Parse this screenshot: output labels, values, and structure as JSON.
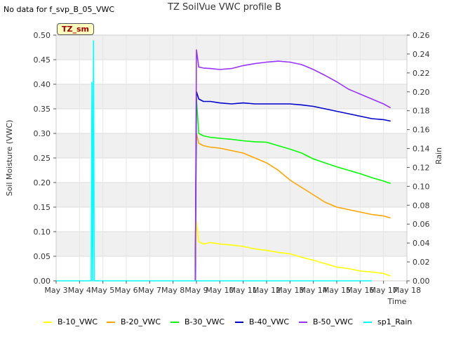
{
  "header": {
    "no_data_text": "No data for f_svp_B_05_VWC",
    "badge_label": "TZ_sm"
  },
  "chart_data": {
    "type": "line",
    "title": "TZ SoilVue VWC profile B",
    "xlabel": "Time",
    "ylabel": "Soil Moisture (VWC)",
    "y2label": "Rain",
    "xlim": [
      0,
      15
    ],
    "ylim": [
      0,
      0.5
    ],
    "y2lim": [
      0,
      0.26
    ],
    "x_ticks": [
      0,
      1,
      2,
      3,
      4,
      5,
      6,
      7,
      8,
      9,
      10,
      11,
      12,
      13,
      14,
      15
    ],
    "x_tick_labels": [
      "May 3",
      "May 4",
      "May 5",
      "May 6",
      "May 7",
      "May 8",
      "May 9",
      "May 10",
      "May 11",
      "May 12",
      "May 13",
      "May 14",
      "May 15",
      "May 16",
      "May 17",
      "May 18"
    ],
    "y_ticks": [
      0,
      0.05,
      0.1,
      0.15,
      0.2,
      0.25,
      0.3,
      0.35,
      0.4,
      0.45,
      0.5
    ],
    "y_tick_labels": [
      "0.00",
      "0.05",
      "0.10",
      "0.15",
      "0.20",
      "0.25",
      "0.30",
      "0.35",
      "0.40",
      "0.45",
      "0.50"
    ],
    "y2_ticks": [
      0,
      0.02,
      0.04,
      0.06,
      0.08,
      0.1,
      0.12,
      0.14,
      0.16,
      0.18,
      0.2,
      0.22,
      0.24,
      0.26
    ],
    "y2_tick_labels": [
      "0.00",
      "0.02",
      "0.04",
      "0.06",
      "0.08",
      "0.10",
      "0.12",
      "0.14",
      "0.16",
      "0.18",
      "0.20",
      "0.22",
      "0.24",
      "0.26"
    ],
    "legend_position": "bottom",
    "series": [
      {
        "name": "B-10_VWC",
        "color": "#ffff00",
        "axis": "left",
        "x": [
          5.95,
          6.0,
          6.1,
          6.3,
          6.6,
          7.0,
          7.5,
          8.0,
          8.5,
          9.0,
          9.5,
          10.0,
          10.5,
          11.0,
          11.5,
          12.0,
          12.5,
          13.0,
          13.5,
          14.0,
          14.3
        ],
        "y": [
          0.0,
          0.12,
          0.08,
          0.075,
          0.078,
          0.075,
          0.073,
          0.07,
          0.065,
          0.062,
          0.058,
          0.055,
          0.048,
          0.042,
          0.035,
          0.028,
          0.025,
          0.02,
          0.018,
          0.015,
          0.01
        ]
      },
      {
        "name": "B-20_VWC",
        "color": "#ffa500",
        "axis": "left",
        "x": [
          5.95,
          6.0,
          6.1,
          6.3,
          6.6,
          7.0,
          7.5,
          8.0,
          8.5,
          9.0,
          9.5,
          10.0,
          10.5,
          11.0,
          11.5,
          12.0,
          12.5,
          13.0,
          13.5,
          14.0,
          14.3
        ],
        "y": [
          0.0,
          0.3,
          0.28,
          0.275,
          0.272,
          0.27,
          0.265,
          0.26,
          0.25,
          0.24,
          0.225,
          0.205,
          0.19,
          0.175,
          0.16,
          0.15,
          0.145,
          0.14,
          0.135,
          0.132,
          0.128
        ]
      },
      {
        "name": "B-30_VWC",
        "color": "#00ff00",
        "axis": "left",
        "x": [
          5.95,
          6.0,
          6.1,
          6.3,
          6.6,
          7.0,
          7.5,
          8.0,
          8.5,
          9.0,
          9.5,
          10.0,
          10.5,
          11.0,
          11.5,
          12.0,
          12.5,
          13.0,
          13.5,
          14.0,
          14.3
        ],
        "y": [
          0.0,
          0.37,
          0.3,
          0.295,
          0.292,
          0.29,
          0.288,
          0.285,
          0.283,
          0.282,
          0.275,
          0.268,
          0.26,
          0.248,
          0.24,
          0.232,
          0.225,
          0.218,
          0.21,
          0.203,
          0.198
        ]
      },
      {
        "name": "B-40_VWC",
        "color": "#0000cc",
        "axis": "left",
        "x": [
          5.95,
          6.0,
          6.1,
          6.3,
          6.6,
          7.0,
          7.5,
          8.0,
          8.5,
          9.0,
          9.5,
          10.0,
          10.5,
          11.0,
          11.5,
          12.0,
          12.5,
          13.0,
          13.5,
          14.0,
          14.3
        ],
        "y": [
          0.0,
          0.385,
          0.37,
          0.365,
          0.365,
          0.362,
          0.36,
          0.362,
          0.36,
          0.36,
          0.36,
          0.36,
          0.358,
          0.355,
          0.35,
          0.345,
          0.34,
          0.335,
          0.33,
          0.328,
          0.325
        ]
      },
      {
        "name": "B-50_VWC",
        "color": "#9933ff",
        "axis": "left",
        "x": [
          5.95,
          6.0,
          6.1,
          6.3,
          6.6,
          7.0,
          7.5,
          8.0,
          8.5,
          9.0,
          9.5,
          10.0,
          10.5,
          11.0,
          11.5,
          12.0,
          12.5,
          13.0,
          13.5,
          14.0,
          14.3
        ],
        "y": [
          0.0,
          0.47,
          0.435,
          0.433,
          0.432,
          0.43,
          0.432,
          0.438,
          0.442,
          0.445,
          0.447,
          0.445,
          0.44,
          0.43,
          0.418,
          0.405,
          0.39,
          0.38,
          0.37,
          0.36,
          0.352
        ]
      },
      {
        "name": "sp1_Rain",
        "color": "#00ffff",
        "axis": "right",
        "x": [
          0,
          1.5,
          1.53,
          1.56,
          1.6,
          1.63,
          1.66,
          13.5
        ],
        "y": [
          0,
          0,
          0.21,
          0,
          0.254,
          0,
          0,
          0
        ]
      }
    ]
  }
}
